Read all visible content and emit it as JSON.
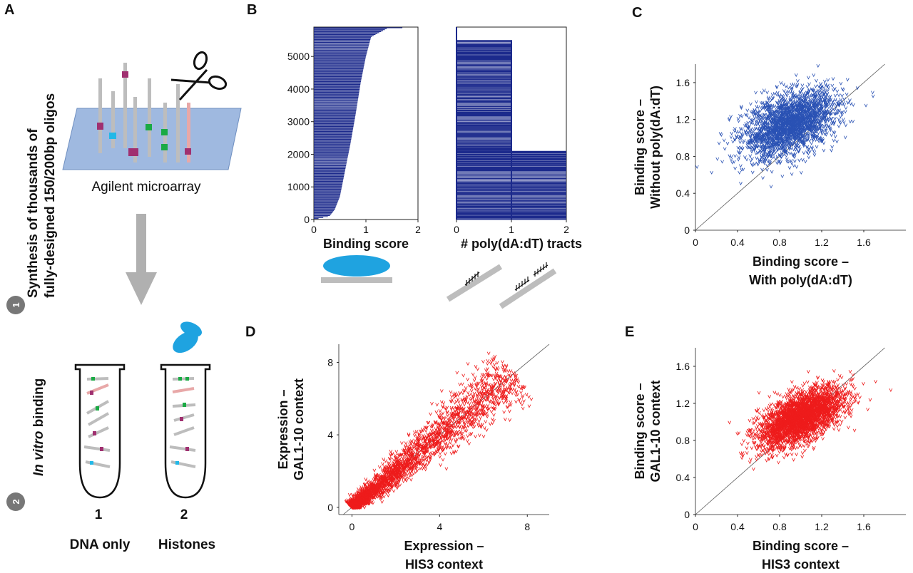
{
  "panel_labels": {
    "a": "A",
    "b": "B",
    "c": "C",
    "d": "D",
    "e": "E"
  },
  "panel_a": {
    "step1_number": "1",
    "step1_line1": "Synthesis of  thousands of",
    "step1_line2": "fully-designed 150/200bp oligos",
    "step2_number": "2",
    "step2_italic": "In vitro",
    "step2_rest": " binding",
    "microarray_label": "Agilent microarray",
    "tube1_number": "1",
    "tube1_label": "DNA only",
    "tube2_number": "2",
    "tube2_label": "Histones",
    "colors": {
      "blue_protein": "#1fa3e0",
      "arrow_gray": "#b0b0b0",
      "slide": "#9fb9e0",
      "oligo_gray": "#bdbdbd",
      "magenta": "#a03070",
      "green": "#1aaa44",
      "cyan": "#22b8e8",
      "pink": "#e8a8a8"
    }
  },
  "chart_data": [
    {
      "id": "B1",
      "type": "bar",
      "orientation": "horizontal",
      "description": "Oligos sorted by binding score",
      "xlabel": "Binding score",
      "xlim": [
        0,
        2
      ],
      "xticks": [
        "0",
        "1",
        "2"
      ],
      "ylim": [
        0,
        5900
      ],
      "yticks": [
        "0",
        "1000",
        "2000",
        "3000",
        "4000",
        "5000"
      ],
      "curve": [
        [
          0,
          0
        ],
        [
          0.3,
          100
        ],
        [
          0.4,
          300
        ],
        [
          0.5,
          700
        ],
        [
          0.6,
          1500
        ],
        [
          0.7,
          2300
        ],
        [
          0.8,
          3200
        ],
        [
          0.9,
          4200
        ],
        [
          1.0,
          5000
        ],
        [
          1.1,
          5600
        ],
        [
          1.4,
          5850
        ],
        [
          1.9,
          5900
        ]
      ],
      "color": "#1c2a8c"
    },
    {
      "id": "B2",
      "type": "bar",
      "orientation": "horizontal",
      "description": "Number of poly(dA:dT) tracts per oligo",
      "xlabel": "# poly(dA:dT)  tracts",
      "xlim": [
        0,
        2
      ],
      "xticks": [
        "0",
        "1",
        "2"
      ],
      "ylim": [
        0,
        5900
      ],
      "segments": [
        {
          "from": 0,
          "to": 2100,
          "value": 2
        },
        {
          "from": 2100,
          "to": 5500,
          "value": 1
        },
        {
          "from": 5500,
          "to": 5900,
          "value": 0
        }
      ],
      "color": "#1c2a8c"
    },
    {
      "id": "C",
      "type": "scatter",
      "xlabel_line1": "Binding score –",
      "xlabel_line2": "With poly(dA:dT)",
      "ylabel_line1": "Binding score –",
      "ylabel_line2": "Without poly(dA:dT)",
      "xlim": [
        0,
        2
      ],
      "ylim": [
        0,
        1.8
      ],
      "xticks": [
        "0",
        "0.4",
        "0.8",
        "1.2",
        "1.6"
      ],
      "yticks": [
        "0",
        "0.4",
        "0.8",
        "1.2",
        "1.6"
      ],
      "diagonal": true,
      "color": "#2a52b4",
      "cluster": {
        "center_x": 0.9,
        "center_y": 1.15,
        "spread_x": 0.22,
        "spread_y": 0.18,
        "n": 2400
      }
    },
    {
      "id": "D",
      "type": "scatter",
      "xlabel_line1": "Expression –",
      "xlabel_line2": "HIS3 context",
      "ylabel_line1": "Expression –",
      "ylabel_line2": "GAL1-10 context",
      "xlim": [
        -0.6,
        9
      ],
      "ylim": [
        -0.4,
        9
      ],
      "xticks": [
        "0",
        "4",
        "8"
      ],
      "yticks": [
        "0",
        "4",
        "8"
      ],
      "diagonal": true,
      "color": "#ee1c1c",
      "cluster": {
        "min": 0,
        "max": 7.4,
        "scatter": 0.7,
        "n": 2600
      }
    },
    {
      "id": "E",
      "type": "scatter",
      "xlabel_line1": "Binding score –",
      "xlabel_line2": "HIS3 context",
      "ylabel_line1": "Binding score –",
      "ylabel_line2": "GAL1-10 context",
      "xlim": [
        0,
        2
      ],
      "ylim": [
        0,
        1.8
      ],
      "xticks": [
        "0",
        "0.4",
        "0.8",
        "1.2",
        "1.6"
      ],
      "yticks": [
        "0",
        "0.4",
        "0.8",
        "1.2",
        "1.6"
      ],
      "diagonal": true,
      "color": "#ee1c1c",
      "cluster": {
        "center_x": 1.0,
        "center_y": 1.05,
        "spread_x": 0.2,
        "spread_y": 0.16,
        "n": 3000
      }
    }
  ]
}
